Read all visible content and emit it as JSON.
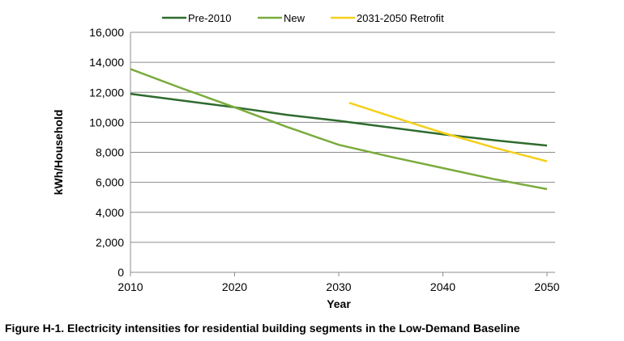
{
  "chart_data": {
    "type": "line",
    "title": "",
    "xlabel": "Year",
    "ylabel": "kWh/Household",
    "xlim": [
      2010,
      2050
    ],
    "ylim": [
      0,
      16000
    ],
    "xticks": [
      2010,
      2020,
      2030,
      2040,
      2050
    ],
    "yticks": [
      0,
      2000,
      4000,
      6000,
      8000,
      10000,
      12000,
      14000,
      16000
    ],
    "ytick_labels": [
      "0",
      "2,000",
      "4,000",
      "6,000",
      "8,000",
      "10,000",
      "12,000",
      "14,000",
      "16,000"
    ],
    "grid": "horizontal",
    "legend": "top",
    "series": [
      {
        "name": "Pre-2010",
        "color": "#2e6b2e",
        "x": [
          2010,
          2015,
          2020,
          2025,
          2030,
          2035,
          2040,
          2045,
          2050
        ],
        "y": [
          11900,
          11450,
          11000,
          10500,
          10100,
          9650,
          9200,
          8800,
          8450
        ]
      },
      {
        "name": "New",
        "color": "#7aab3c",
        "x": [
          2010,
          2015,
          2020,
          2025,
          2030,
          2035,
          2040,
          2045,
          2050
        ],
        "y": [
          13550,
          12250,
          11000,
          9700,
          8500,
          7700,
          6950,
          6200,
          5550
        ]
      },
      {
        "name": "2031-2050 Retrofit",
        "color": "#f5cf1a",
        "x": [
          2031,
          2035,
          2040,
          2045,
          2050
        ],
        "y": [
          11300,
          10400,
          9300,
          8300,
          7400
        ]
      }
    ]
  },
  "caption": "Figure H-1. Electricity intensities for residential building segments in the Low-Demand Baseline"
}
